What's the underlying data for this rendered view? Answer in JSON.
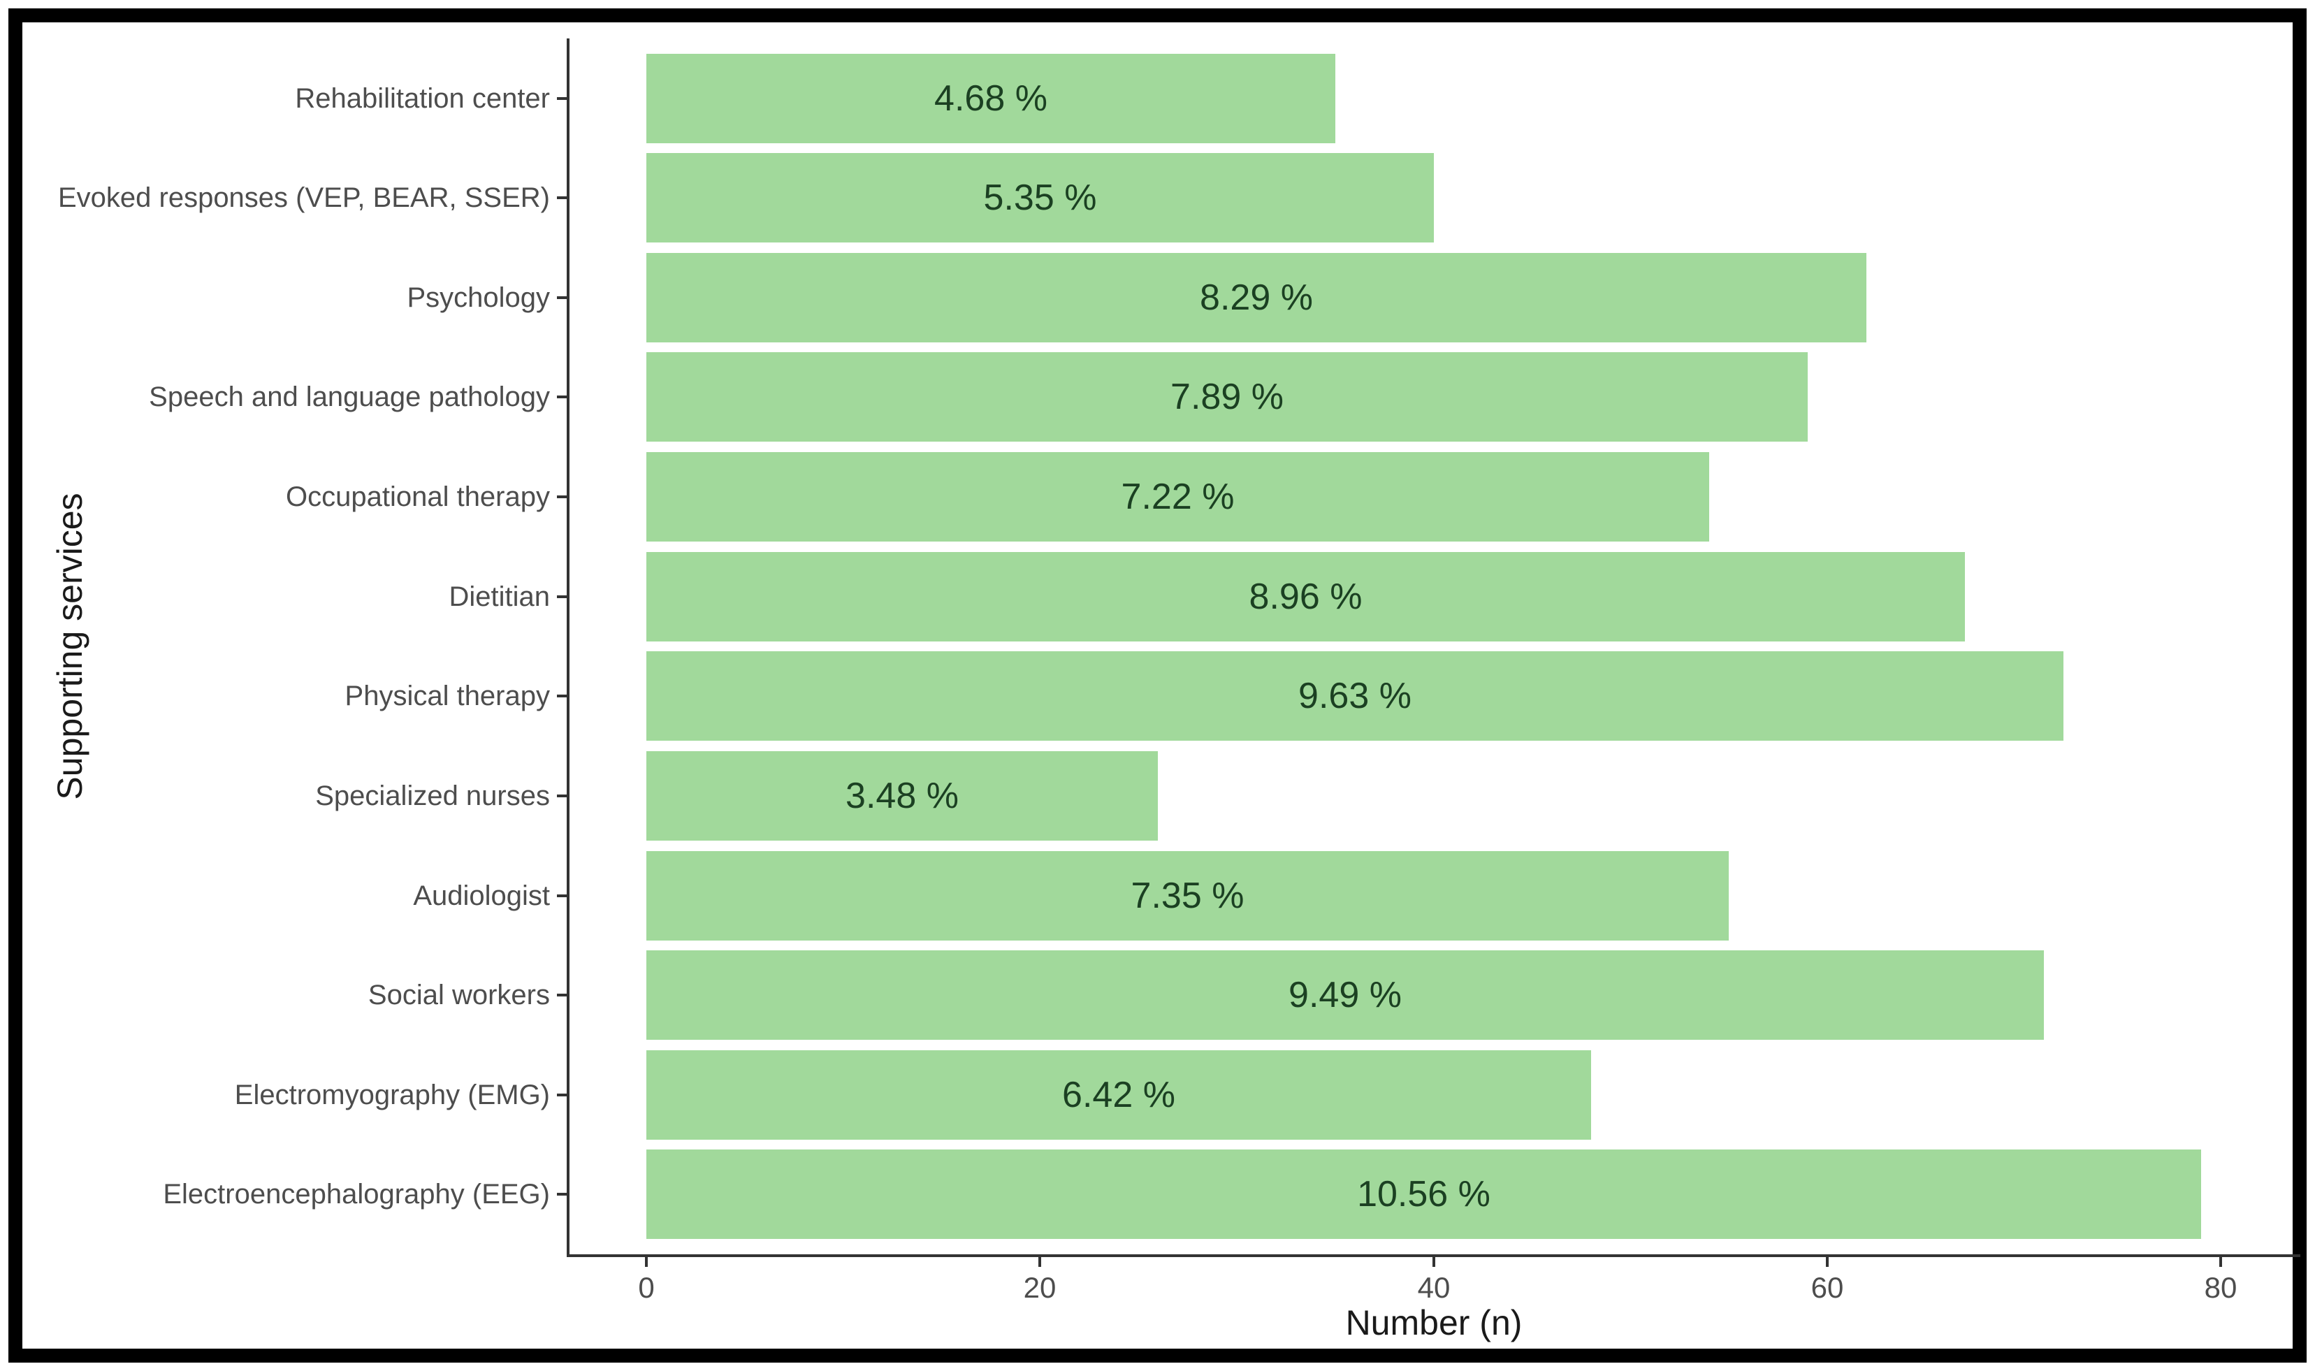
{
  "figure": {
    "background": "#ffffff",
    "frame_color": "#000000"
  },
  "chart_data": {
    "type": "bar",
    "orientation": "horizontal",
    "title": "",
    "xlabel": "Number (n)",
    "ylabel": "Supporting services",
    "xlim": [
      0,
      80
    ],
    "xticks": [
      "0",
      "20",
      "40",
      "60",
      "80"
    ],
    "grid": "off",
    "legend": "none",
    "categories": [
      "Rehabilitation center",
      "Evoked responses (VEP, BEAR, SSER)",
      "Psychology",
      "Speech and language pathology",
      "Occupational therapy",
      "Dietitian",
      "Physical therapy",
      "Specialized nurses",
      "Audiologist",
      "Social workers",
      "Electromyography (EMG)",
      "Electroencephalography (EEG)"
    ],
    "series": [
      {
        "name": "Number (n)",
        "values": [
          35,
          40,
          62,
          59,
          54,
          67,
          72,
          26,
          55,
          71,
          48,
          79
        ]
      }
    ],
    "bar_labels": [
      "4.68 %",
      "5.35 %",
      "8.29 %",
      "7.89 %",
      "7.22 %",
      "8.96 %",
      "9.63 %",
      "3.48 %",
      "7.35 %",
      "9.49 %",
      "6.42 %",
      "10.56 %"
    ],
    "colors": {
      "bar_fill": "#a1d99b",
      "bar_label_text": "#1b4022",
      "axis_text": "#4d4d4d",
      "axis_title_text": "#1a1a1a",
      "axis_line": "#333333"
    }
  }
}
